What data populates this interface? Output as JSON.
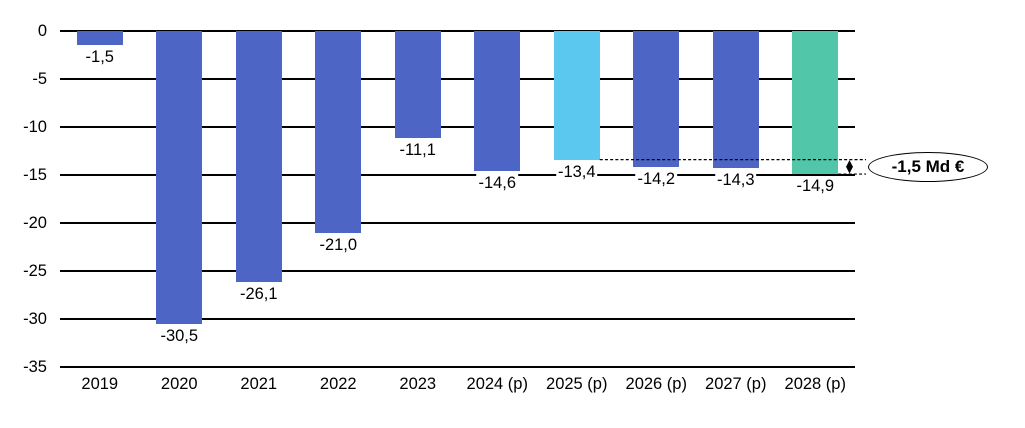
{
  "chart_data": {
    "type": "bar",
    "title": "",
    "xlabel": "",
    "ylabel": "",
    "categories": [
      "2019",
      "2020",
      "2021",
      "2022",
      "2023",
      "2024 (p)",
      "2025 (p)",
      "2026 (p)",
      "2027 (p)",
      "2028 (p)"
    ],
    "values": [
      -1.5,
      -30.5,
      -26.1,
      -21.0,
      -11.1,
      -14.6,
      -13.4,
      -14.2,
      -14.3,
      -14.9
    ],
    "value_labels": [
      "-1,5",
      "-30,5",
      "-26,1",
      "-21,0",
      "-11,1",
      "-14,6",
      "-13,4",
      "-14,2",
      "-14,3",
      "-14,9"
    ],
    "bar_colors": [
      "#4D65C4",
      "#4D65C4",
      "#4D65C4",
      "#4D65C4",
      "#4D65C4",
      "#4D65C4",
      "#5BC8F0",
      "#4D65C4",
      "#4D65C4",
      "#52C6A8"
    ],
    "ylim": [
      -35,
      0
    ],
    "yticks": [
      0,
      -5,
      -10,
      -15,
      -20,
      -25,
      -30,
      -35
    ],
    "ytick_labels": [
      "0",
      "-5",
      "-10",
      "-15",
      "-20",
      "-25",
      "-30",
      "-35"
    ],
    "grid": true,
    "legend": false,
    "annotation": {
      "label": "-1,5 Md €",
      "from_category": "2025 (p)",
      "from_value": -13.4,
      "to_category": "2028 (p)",
      "to_value": -14.9,
      "line_style": "dashed"
    }
  },
  "colors": {
    "default_bar": "#4D65C4",
    "highlight_cyan": "#5BC8F0",
    "highlight_teal": "#52C6A8",
    "line": "#000000",
    "background": "#FFFFFF"
  }
}
